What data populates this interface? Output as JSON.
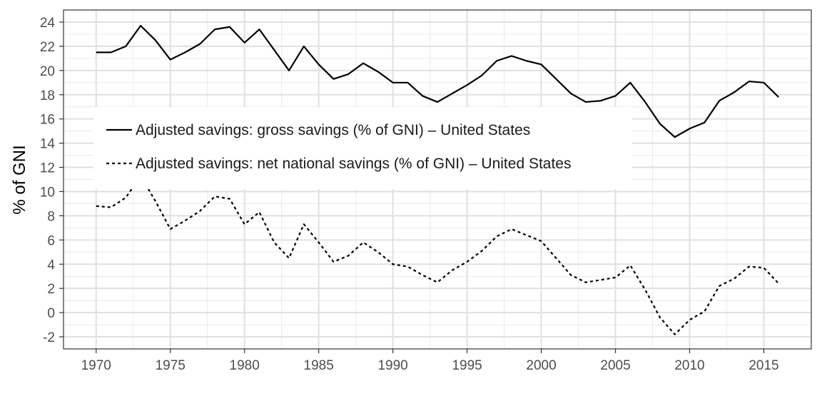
{
  "chart_data": {
    "type": "line",
    "title": "",
    "xlabel": "",
    "ylabel": "% of GNI",
    "x": [
      1970,
      1971,
      1972,
      1973,
      1974,
      1975,
      1976,
      1977,
      1978,
      1979,
      1980,
      1981,
      1982,
      1983,
      1984,
      1985,
      1986,
      1987,
      1988,
      1989,
      1990,
      1991,
      1992,
      1993,
      1994,
      1995,
      1996,
      1997,
      1998,
      1999,
      2000,
      2001,
      2002,
      2003,
      2004,
      2005,
      2006,
      2007,
      2008,
      2009,
      2010,
      2011,
      2012,
      2013,
      2014,
      2015,
      2016
    ],
    "xlim": [
      1967.8,
      2018.2
    ],
    "ylim": [
      -3,
      25
    ],
    "x_ticks": [
      "1970",
      "1975",
      "1980",
      "1985",
      "1990",
      "1995",
      "2000",
      "2005",
      "2010",
      "2015"
    ],
    "y_ticks": [
      "-2",
      "0",
      "2",
      "4",
      "6",
      "8",
      "10",
      "12",
      "14",
      "16",
      "18",
      "20",
      "22",
      "24"
    ],
    "grid": true,
    "legend_position": "top-left, inside plot",
    "series": [
      {
        "name": "Adjusted savings: gross savings (% of GNI) – United States",
        "style": "solid",
        "color": "#000000",
        "values": [
          21.5,
          21.5,
          22.0,
          23.7,
          22.5,
          20.9,
          21.5,
          22.2,
          23.4,
          23.6,
          22.3,
          23.4,
          21.7,
          20.0,
          22.0,
          20.5,
          19.3,
          19.7,
          20.6,
          19.9,
          19.0,
          19.0,
          17.9,
          17.4,
          18.1,
          18.8,
          19.6,
          20.8,
          21.2,
          20.8,
          20.5,
          19.3,
          18.1,
          17.4,
          17.5,
          17.9,
          19.0,
          17.4,
          15.6,
          14.5,
          15.2,
          15.7,
          17.5,
          18.2,
          19.1,
          19.0,
          17.8
        ]
      },
      {
        "name": "Adjusted savings: net national savings (% of GNI) – United States",
        "style": "dashed",
        "color": "#000000",
        "values": [
          8.8,
          8.7,
          9.5,
          11.3,
          9.2,
          6.9,
          7.6,
          8.4,
          9.6,
          9.4,
          7.3,
          8.3,
          5.8,
          4.5,
          7.3,
          5.8,
          4.2,
          4.7,
          5.8,
          5.0,
          4.0,
          3.8,
          3.1,
          2.5,
          3.5,
          4.2,
          5.1,
          6.3,
          6.9,
          6.4,
          5.9,
          4.5,
          3.1,
          2.5,
          2.7,
          2.9,
          3.9,
          1.9,
          -0.4,
          -1.8,
          -0.6,
          0.1,
          2.2,
          2.8,
          3.8,
          3.7,
          2.4
        ]
      }
    ]
  }
}
